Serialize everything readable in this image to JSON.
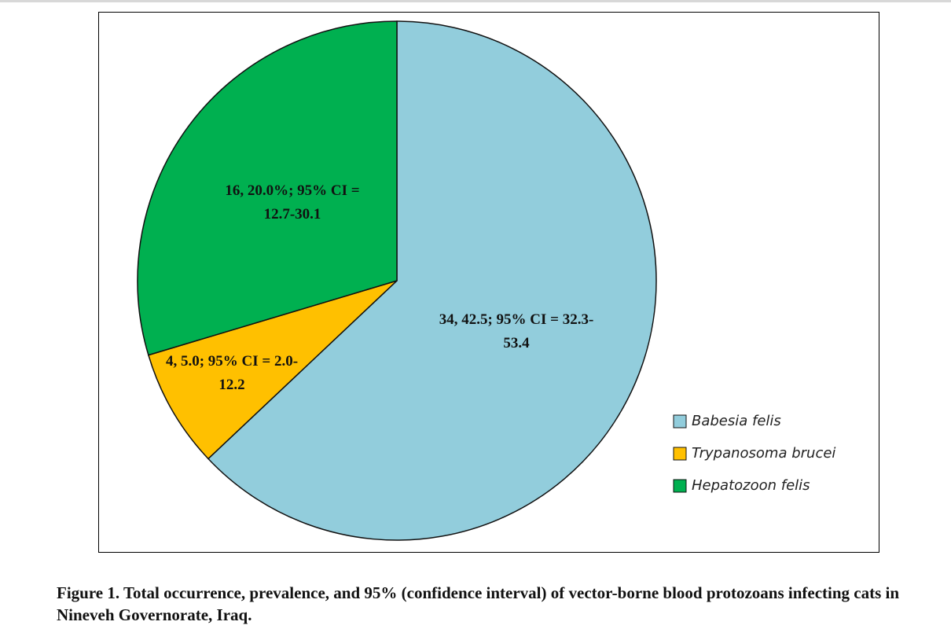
{
  "chart_data": {
    "type": "pie",
    "categories": [
      "Babesia felis",
      "Trypanosoma brucei",
      "Hepatozoon felis"
    ],
    "values": [
      34,
      4,
      16
    ],
    "value_labels": [
      "34, 42.5; 95% CI = 32.3-53.4",
      "4, 5.0; 95% CI = 2.0-12.2",
      "16, 20.0%; 95% CI = 12.7-30.1"
    ],
    "colors": [
      "#92cddc",
      "#ffc000",
      "#00b050"
    ],
    "legend": "right"
  },
  "caption": "Figure 1. Total occurrence, prevalence, and 95% (confidence interval) of vector-borne blood protozoans infecting cats in Nineveh Governorate, Iraq."
}
